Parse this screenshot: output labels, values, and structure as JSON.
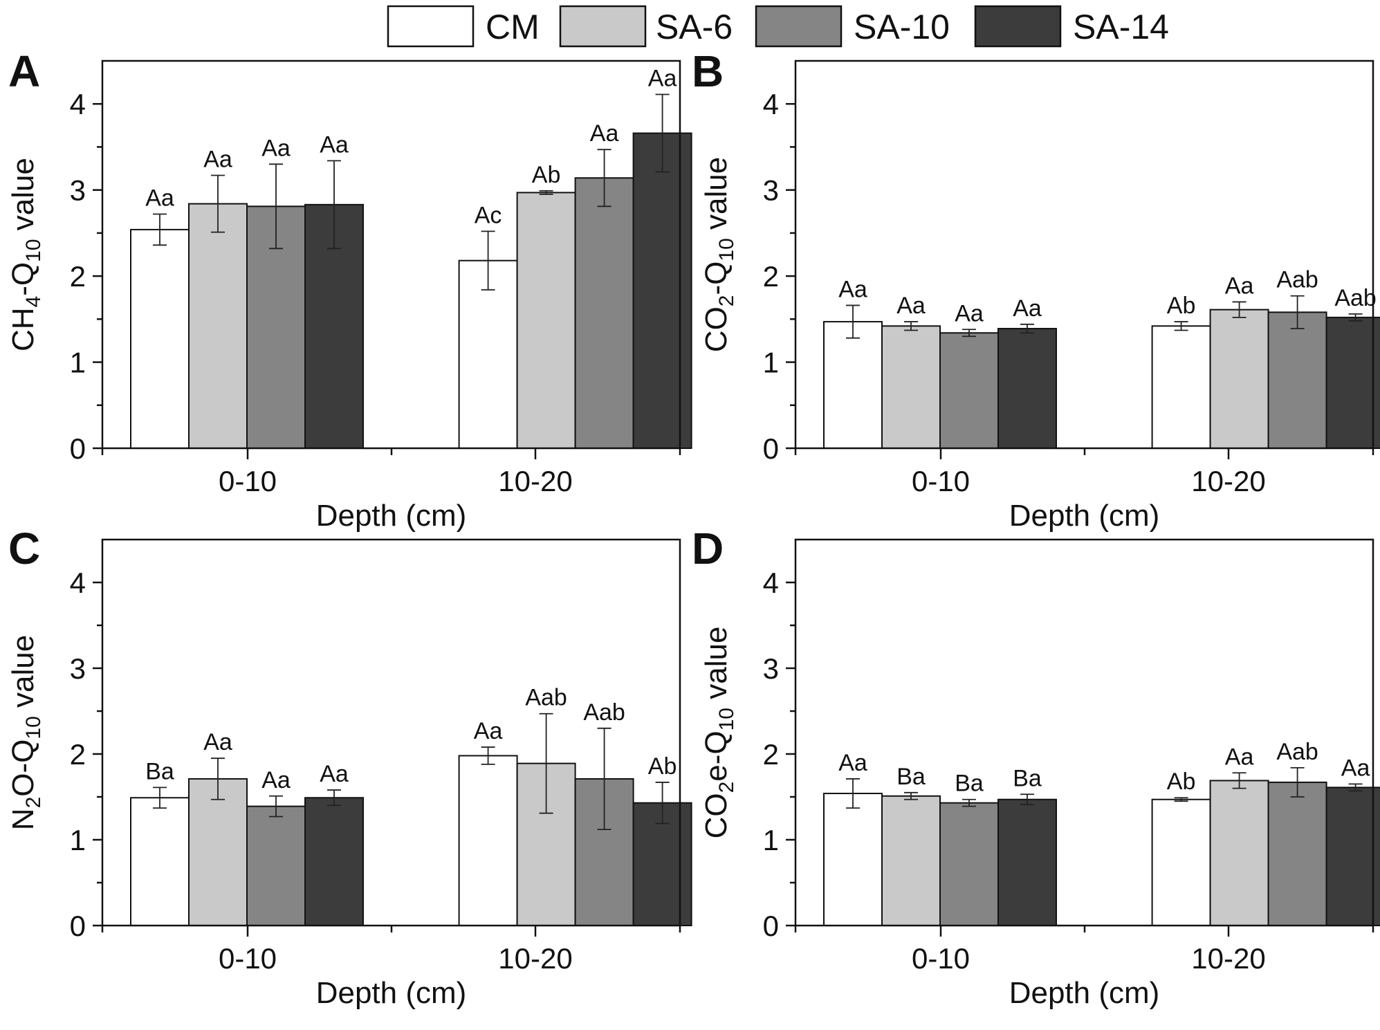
{
  "legend": {
    "items": [
      {
        "label": "CM",
        "color": "#ffffff"
      },
      {
        "label": "SA-6",
        "color": "#c9c9c9"
      },
      {
        "label": "SA-10",
        "color": "#858585"
      },
      {
        "label": "SA-14",
        "color": "#3c3c3c"
      }
    ]
  },
  "chart_data": [
    {
      "type": "bar",
      "panel": "A",
      "categories": [
        "0-10",
        "10-20"
      ],
      "xlabel": "Depth (cm)",
      "ylabel": {
        "prefix": "CH",
        "sub1": "4",
        "mid": "-Q",
        "sub2": "10",
        "suffix": " value"
      },
      "ylim": [
        0,
        4.5
      ],
      "yticks": [
        "0",
        "1",
        "2",
        "3",
        "4"
      ],
      "series": [
        {
          "name": "CM",
          "values": [
            2.54,
            2.18
          ],
          "errors": [
            0.18,
            0.34
          ],
          "labels": [
            "Aa",
            "Ac"
          ]
        },
        {
          "name": "SA-6",
          "values": [
            2.84,
            2.97
          ],
          "errors": [
            0.33,
            0.02
          ],
          "labels": [
            "Aa",
            "Ab"
          ]
        },
        {
          "name": "SA-10",
          "values": [
            2.81,
            3.14
          ],
          "errors": [
            0.49,
            0.33
          ],
          "labels": [
            "Aa",
            "Aa"
          ]
        },
        {
          "name": "SA-14",
          "values": [
            2.83,
            3.66
          ],
          "errors": [
            0.51,
            0.45
          ],
          "labels": [
            "Aa",
            "Aa"
          ]
        }
      ]
    },
    {
      "type": "bar",
      "panel": "B",
      "categories": [
        "0-10",
        "10-20"
      ],
      "xlabel": "Depth (cm)",
      "ylabel": {
        "prefix": "CO",
        "sub1": "2",
        "mid": "-Q",
        "sub2": "10",
        "suffix": " value"
      },
      "ylim": [
        0,
        4.5
      ],
      "yticks": [
        "0",
        "1",
        "2",
        "3",
        "4"
      ],
      "series": [
        {
          "name": "CM",
          "values": [
            1.47,
            1.42
          ],
          "errors": [
            0.19,
            0.05
          ],
          "labels": [
            "Aa",
            "Ab"
          ]
        },
        {
          "name": "SA-6",
          "values": [
            1.42,
            1.61
          ],
          "errors": [
            0.05,
            0.09
          ],
          "labels": [
            "Aa",
            "Aa"
          ]
        },
        {
          "name": "SA-10",
          "values": [
            1.34,
            1.58
          ],
          "errors": [
            0.04,
            0.19
          ],
          "labels": [
            "Aa",
            "Aab"
          ]
        },
        {
          "name": "SA-14",
          "values": [
            1.39,
            1.52
          ],
          "errors": [
            0.05,
            0.04
          ],
          "labels": [
            "Aa",
            "Aab"
          ]
        }
      ]
    },
    {
      "type": "bar",
      "panel": "C",
      "categories": [
        "0-10",
        "10-20"
      ],
      "xlabel": "Depth (cm)",
      "ylabel": {
        "prefix": "N",
        "sub1": "2",
        "mid": "O-Q",
        "sub2": "10",
        "suffix": " value"
      },
      "ylim": [
        0,
        4.5
      ],
      "yticks": [
        "0",
        "1",
        "2",
        "3",
        "4"
      ],
      "series": [
        {
          "name": "CM",
          "values": [
            1.49,
            1.98
          ],
          "errors": [
            0.12,
            0.1
          ],
          "labels": [
            "Ba",
            "Aa"
          ]
        },
        {
          "name": "SA-6",
          "values": [
            1.71,
            1.89
          ],
          "errors": [
            0.24,
            0.58
          ],
          "labels": [
            "Aa",
            "Aab"
          ]
        },
        {
          "name": "SA-10",
          "values": [
            1.39,
            1.71
          ],
          "errors": [
            0.12,
            0.59
          ],
          "labels": [
            "Aa",
            "Aab"
          ]
        },
        {
          "name": "SA-14",
          "values": [
            1.49,
            1.43
          ],
          "errors": [
            0.09,
            0.24
          ],
          "labels": [
            "Aa",
            "Ab"
          ]
        }
      ]
    },
    {
      "type": "bar",
      "panel": "D",
      "categories": [
        "0-10",
        "10-20"
      ],
      "xlabel": "Depth (cm)",
      "ylabel": {
        "prefix": "CO",
        "sub1": "2",
        "mid": "e-Q",
        "sub2": "10",
        "suffix": " value"
      },
      "ylim": [
        0,
        4.5
      ],
      "yticks": [
        "0",
        "1",
        "2",
        "3",
        "4"
      ],
      "series": [
        {
          "name": "CM",
          "values": [
            1.54,
            1.47
          ],
          "errors": [
            0.17,
            0.02
          ],
          "labels": [
            "Aa",
            "Ab"
          ]
        },
        {
          "name": "SA-6",
          "values": [
            1.51,
            1.69
          ],
          "errors": [
            0.04,
            0.09
          ],
          "labels": [
            "Ba",
            "Aa"
          ]
        },
        {
          "name": "SA-10",
          "values": [
            1.43,
            1.67
          ],
          "errors": [
            0.04,
            0.17
          ],
          "labels": [
            "Ba",
            "Aab"
          ]
        },
        {
          "name": "SA-14",
          "values": [
            1.47,
            1.61
          ],
          "errors": [
            0.06,
            0.04
          ],
          "labels": [
            "Ba",
            "Aa"
          ]
        }
      ]
    }
  ]
}
